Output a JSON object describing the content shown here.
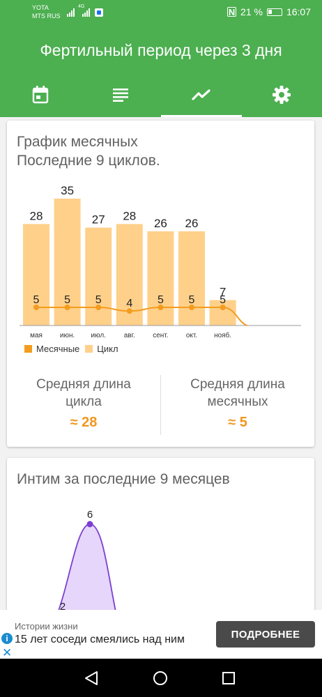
{
  "status_bar": {
    "carrier_1": "YOTA",
    "carrier_2": "MTS RUS",
    "signal_label": "4G",
    "battery": "21 %",
    "time": "16:07"
  },
  "app": {
    "title": "Фертильный период через 3 дня",
    "tabs": [
      {
        "icon": "calendar-icon"
      },
      {
        "icon": "list-icon"
      },
      {
        "icon": "chart-icon",
        "active": true
      },
      {
        "icon": "gear-icon"
      }
    ]
  },
  "cycles_card": {
    "title_line1": "График месячных",
    "title_line2": "Последние 9 циклов.",
    "avg_cycle_label": "Средняя длина цикла",
    "avg_cycle_value": "≈ 28",
    "avg_period_label": "Средняя длина месячных",
    "avg_period_value": "≈ 5"
  },
  "chart_data": {
    "type": "bar",
    "categories": [
      "мая",
      "июн.",
      "июл.",
      "авг.",
      "сент.",
      "окт.",
      "нояб."
    ],
    "series": [
      {
        "name": "Цикл",
        "type": "bar",
        "color": "#ffd08a",
        "values": [
          28,
          35,
          27,
          28,
          26,
          26,
          7
        ]
      },
      {
        "name": "Месячные",
        "type": "line",
        "color": "#f39c1e",
        "values": [
          5,
          5,
          5,
          4,
          5,
          5,
          5
        ]
      }
    ],
    "legend_position": "bottom-left",
    "grid": false
  },
  "intimacy_card": {
    "title": "Интим за последние 9 месяцев",
    "visible_labels": [
      "6",
      "2"
    ],
    "color": "#7b3fd1",
    "fill": "#e6d6fb"
  },
  "ad": {
    "subtitle": "Истории жизни",
    "text": "15 лет соседи смеялись над ним",
    "button": "ПОДРОБНЕЕ",
    "info": "i",
    "close": "✕"
  },
  "colors": {
    "primary": "#4caf50",
    "accent": "#f0961e"
  }
}
